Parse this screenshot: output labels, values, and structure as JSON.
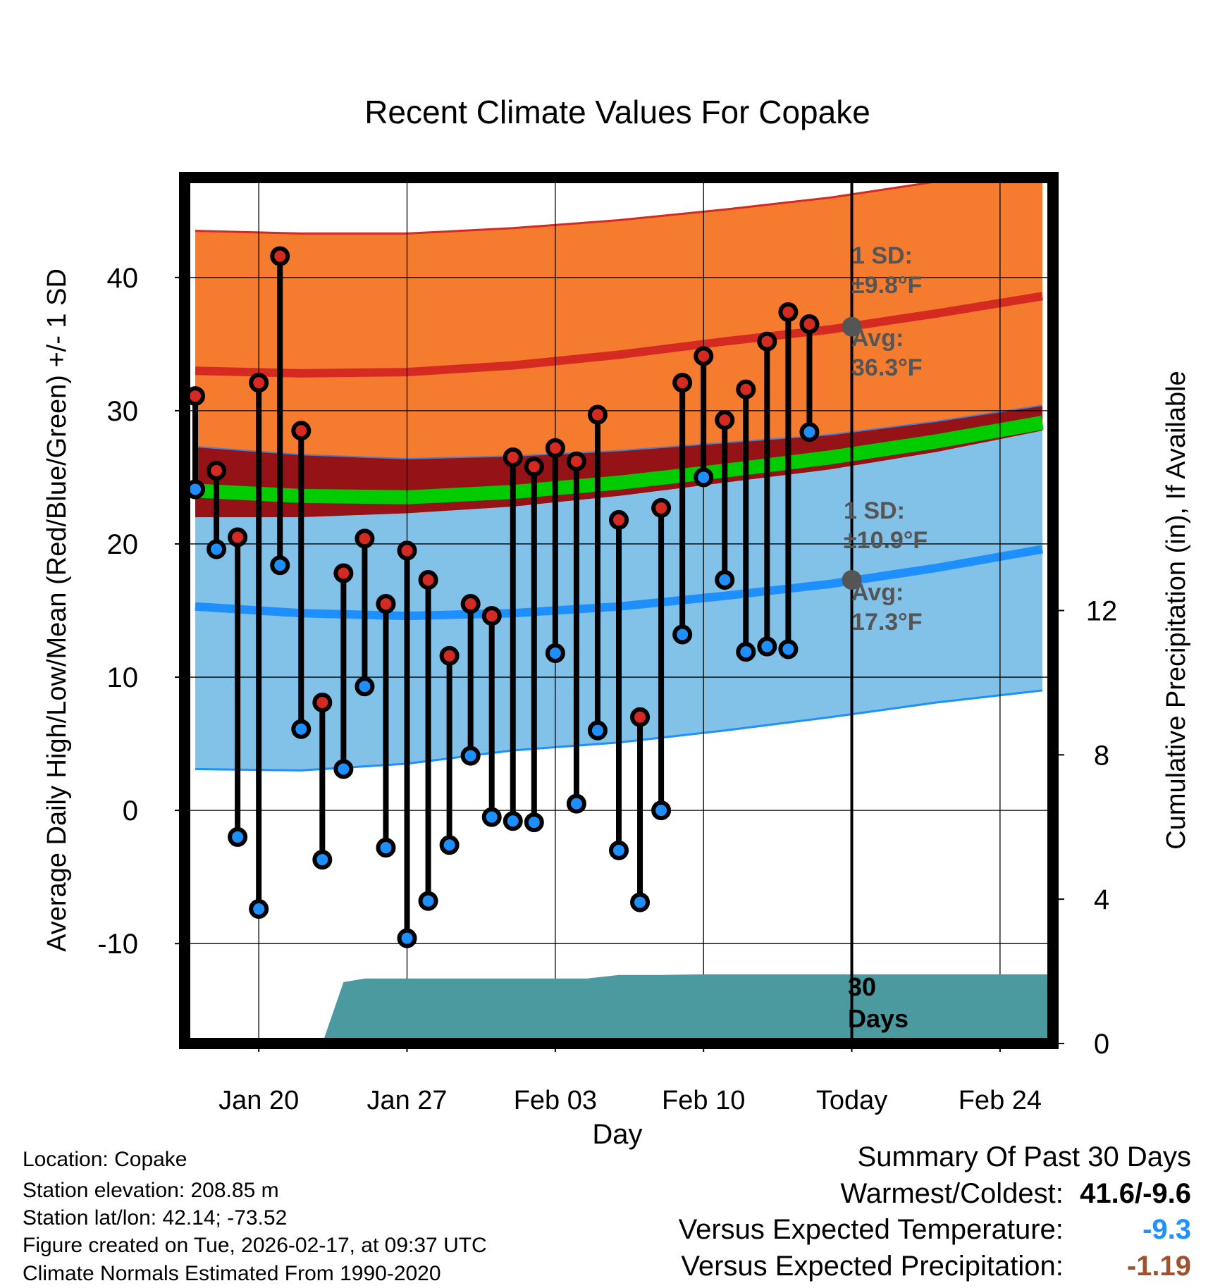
{
  "chart_data": {
    "type": "line",
    "title": "Recent Climate Values For Copake",
    "xlabel": "Day",
    "ylabel": "Average Daily High/Low/Mean (Red/Blue/Green) +/- 1 SD",
    "y2label": "Cumulative Precipitation (in), If Available",
    "ylim": [
      -17.5,
      47.5
    ],
    "y2lim": [
      0,
      24
    ],
    "xlim": [
      -0.5,
      40.5
    ],
    "xticks": [
      {
        "day": 3,
        "label": "Jan 20"
      },
      {
        "day": 10,
        "label": "Jan 27"
      },
      {
        "day": 17,
        "label": "Feb 03"
      },
      {
        "day": 24,
        "label": "Feb 10"
      },
      {
        "day": 31,
        "label": "Today"
      },
      {
        "day": 38,
        "label": "Feb 24"
      }
    ],
    "yticks": [
      -10,
      0,
      10,
      20,
      30,
      40
    ],
    "y2ticks": [
      0,
      4,
      8,
      12
    ],
    "normals": {
      "day": [
        0,
        5,
        10,
        15,
        20,
        25,
        30,
        35,
        40
      ],
      "high_avg": [
        33.0,
        32.8,
        32.9,
        33.4,
        34.2,
        35.2,
        36.1,
        37.3,
        38.6
      ],
      "high_upper": [
        43.5,
        43.3,
        43.3,
        43.7,
        44.3,
        45.1,
        46.0,
        47.2,
        48.6
      ],
      "high_lower": [
        27.3,
        26.7,
        26.4,
        26.6,
        27.0,
        27.6,
        28.2,
        29.2,
        30.4
      ],
      "low_avg": [
        15.3,
        14.8,
        14.6,
        14.8,
        15.3,
        16.1,
        17.0,
        18.2,
        19.6
      ],
      "low_upper": [
        22.0,
        22.0,
        22.3,
        22.8,
        23.6,
        24.6,
        25.6,
        26.9,
        28.5
      ],
      "low_lower": [
        3.1,
        3.0,
        3.5,
        4.5,
        5.1,
        6.0,
        7.0,
        8.1,
        9.0
      ],
      "mean_avg": [
        24.0,
        23.6,
        23.5,
        23.9,
        24.6,
        25.5,
        26.5,
        27.7,
        29.1
      ]
    },
    "series": [
      {
        "name": "High",
        "values": [
          31.1,
          25.5,
          20.5,
          32.1,
          41.6,
          28.5,
          8.1,
          17.8,
          20.4,
          15.5,
          19.5,
          17.3,
          11.6,
          15.5,
          14.6,
          26.5,
          25.8,
          27.2,
          26.2,
          29.7,
          21.8,
          7.0,
          22.7,
          32.1,
          34.1,
          29.3,
          31.6,
          35.2,
          37.4,
          36.5
        ]
      },
      {
        "name": "Low",
        "values": [
          24.1,
          19.6,
          -2.0,
          -7.4,
          18.4,
          6.1,
          -3.7,
          3.1,
          9.3,
          -2.8,
          -9.6,
          -6.8,
          -2.6,
          4.1,
          -0.5,
          -0.8,
          -0.9,
          11.8,
          0.5,
          6.0,
          -3.0,
          -6.9,
          0.0,
          13.2,
          25.0,
          17.3,
          11.9,
          12.3,
          12.1,
          28.4
        ]
      }
    ],
    "precip": {
      "day": [
        0,
        6,
        7,
        8,
        9.5,
        17,
        18.5,
        20,
        22,
        24,
        30,
        40.5
      ],
      "values": [
        0,
        0,
        1.7,
        1.8,
        1.8,
        1.8,
        1.8,
        1.9,
        1.9,
        1.92,
        1.92,
        1.92
      ]
    },
    "annotations": {
      "high_sd_line1": "1 SD:",
      "high_sd_line2": "±9.8°F",
      "high_avg_line1": "Avg:",
      "high_avg_line2": "36.3°F",
      "high_avg_value": 36.3,
      "low_sd_line1": "1 SD:",
      "low_sd_line2": "±10.9°F",
      "low_avg_line1": "Avg:",
      "low_avg_value": 17.3,
      "low_avg_line2": "17.3°F",
      "days_line1": "30",
      "days_line2": "Days"
    }
  },
  "info": {
    "location": "Location: Copake",
    "elevation": "Station elevation: 208.85 m",
    "latlon": "Station lat/lon: 42.14; -73.52",
    "created": "Figure created on Tue, 2026-02-17, at 09:37 UTC",
    "normals": "Climate Normals Estimated From 1990-2020"
  },
  "summary": {
    "title": "Summary Of Past 30 Days",
    "warmest_label": "Warmest/Coldest:",
    "warmest_value": "41.6/-9.6",
    "temp_label": "Versus Expected Temperature:",
    "temp_value": "-9.3",
    "temp_color": "#1e90ff",
    "precip_label": "Versus Expected Precipitation:",
    "precip_value": "-1.19",
    "precip_color": "#a0522d"
  },
  "colors": {
    "high_band": "#f57c2f",
    "high_avg": "#d42a22",
    "low_band": "#82c1e8",
    "low_avg": "#1e8fff",
    "mean_band": "#00cc00",
    "overlap": "#951217",
    "precip": "#4a9aa0",
    "high_marker": "#d42a22",
    "low_marker": "#1e8fff",
    "avg_dot": "#555555",
    "annot_text": "#555555"
  }
}
